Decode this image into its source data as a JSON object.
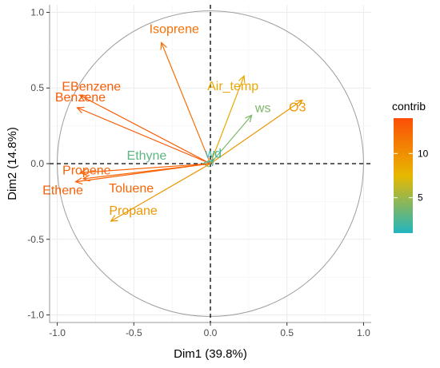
{
  "chart_data": {
    "type": "scatter",
    "subtype": "pca-variable-correlation-circle",
    "title": "",
    "xlabel": "Dim1 (39.8%)",
    "ylabel": "Dim2 (14.8%)",
    "xlim": [
      -1.05,
      1.05
    ],
    "ylim": [
      -1.05,
      1.05
    ],
    "xticks": [
      -1.0,
      -0.5,
      0.0,
      0.5,
      1.0
    ],
    "yticks": [
      -1.0,
      -0.5,
      0.0,
      0.5,
      1.0
    ],
    "xtick_labels": [
      "-1.0",
      "-0.5",
      "0.0",
      "0.5",
      "1.0"
    ],
    "ytick_labels": [
      "-1.0",
      "-0.5",
      "0.0",
      "0.5",
      "1.0"
    ],
    "grid": true,
    "unit_circle": true,
    "reference_lines": {
      "x": 0,
      "y": 0,
      "style": "dashed"
    },
    "variables": [
      {
        "name": "Isoprene",
        "x": -0.32,
        "y": 0.8,
        "contrib": 12.0
      },
      {
        "name": "EBenzene",
        "x": -0.85,
        "y": 0.45,
        "contrib": 13.0
      },
      {
        "name": "Benzene",
        "x": -0.87,
        "y": 0.37,
        "contrib": 13.2
      },
      {
        "name": "Air_temp",
        "x": 0.22,
        "y": 0.58,
        "contrib": 8.5
      },
      {
        "name": "ws",
        "x": 0.27,
        "y": 0.32,
        "contrib": 4.0
      },
      {
        "name": "O3",
        "x": 0.6,
        "y": 0.42,
        "contrib": 9.5
      },
      {
        "name": "Ethyne",
        "x": -0.05,
        "y": 0.0,
        "contrib": 3.0
      },
      {
        "name": "wd",
        "x": 0.02,
        "y": 0.03,
        "contrib": 2.0
      },
      {
        "name": "Propene",
        "x": -0.85,
        "y": -0.06,
        "contrib": 12.8
      },
      {
        "name": "Toluene",
        "x": -0.83,
        "y": -0.1,
        "contrib": 12.5
      },
      {
        "name": "Ethene",
        "x": -0.88,
        "y": -0.12,
        "contrib": 12.9
      },
      {
        "name": "Propane",
        "x": -0.65,
        "y": -0.38,
        "contrib": 9.5
      }
    ],
    "legend": {
      "title": "contrib",
      "position": "right",
      "range": [
        1,
        14
      ],
      "ticks": [
        5,
        10
      ],
      "tick_labels": [
        "5",
        "10"
      ],
      "gradient": [
        "#22b5bf",
        "#e7b800",
        "#fc4e07"
      ]
    }
  }
}
